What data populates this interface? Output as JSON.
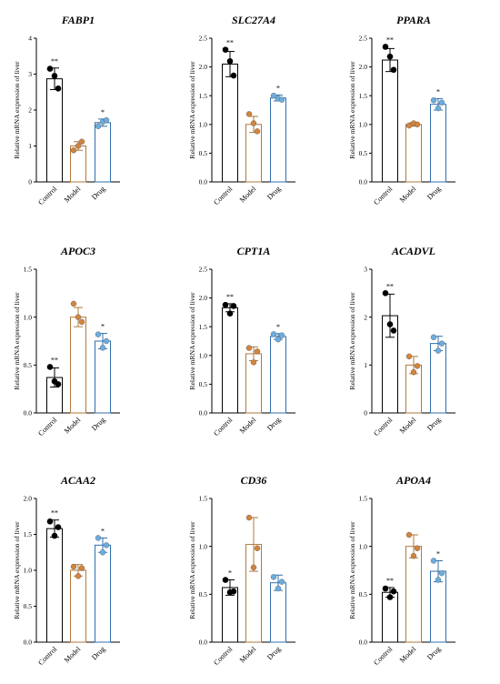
{
  "colors": {
    "Control": "#000000",
    "Model": "#b07a3a",
    "Drug": "#2f6fae",
    "Model_points": "#d2843e",
    "Drug_points": "#6aaee0"
  },
  "chart_data": [
    {
      "type": "bar",
      "title": "FABP1",
      "ylabel": "Relative mRNA expression of liver",
      "categories": [
        "Control",
        "Model",
        "Drug"
      ],
      "ylim": [
        0,
        4
      ],
      "yticks": [
        "0",
        "1",
        "2",
        "3",
        "4"
      ],
      "values": [
        2.87,
        1.0,
        1.65
      ],
      "errors": [
        0.3,
        0.12,
        0.1
      ],
      "significance": [
        "**",
        "",
        "*"
      ],
      "points": [
        [
          3.15,
          2.95,
          2.6
        ],
        [
          0.88,
          1.0,
          1.12
        ],
        [
          1.55,
          1.67,
          1.72
        ]
      ]
    },
    {
      "type": "bar",
      "title": "SLC27A4",
      "ylabel": "Relative mRNA expression of liver",
      "categories": [
        "Control",
        "Model",
        "Drug"
      ],
      "ylim": [
        0,
        2.5
      ],
      "yticks": [
        "0.0",
        "0.5",
        "1.0",
        "1.5",
        "2.0",
        "2.5"
      ],
      "values": [
        2.05,
        1.0,
        1.46
      ],
      "errors": [
        0.22,
        0.14,
        0.05
      ],
      "significance": [
        "**",
        "",
        "*"
      ],
      "points": [
        [
          2.3,
          2.1,
          1.85
        ],
        [
          1.18,
          1.02,
          0.88
        ],
        [
          1.5,
          1.45,
          1.43
        ]
      ]
    },
    {
      "type": "bar",
      "title": "PPARA",
      "ylabel": "Relative mRNA expression of liver",
      "categories": [
        "Control",
        "Model",
        "Drug"
      ],
      "ylim": [
        0,
        2.5
      ],
      "yticks": [
        "0.0",
        "0.5",
        "1.0",
        "1.5",
        "2.0",
        "2.5"
      ],
      "values": [
        2.12,
        1.0,
        1.35
      ],
      "errors": [
        0.2,
        0.03,
        0.1
      ],
      "significance": [
        "**",
        "",
        "*"
      ],
      "points": [
        [
          2.35,
          2.18,
          1.95
        ],
        [
          0.98,
          1.02,
          1.0
        ],
        [
          1.42,
          1.28,
          1.38
        ]
      ]
    },
    {
      "type": "bar",
      "title": "APOC3",
      "ylabel": "Relative mRNA expression of liver",
      "categories": [
        "Control",
        "Model",
        "Drug"
      ],
      "ylim": [
        0,
        1.5
      ],
      "yticks": [
        "0.0",
        "0.5",
        "1.0",
        "1.5"
      ],
      "values": [
        0.37,
        1.0,
        0.75
      ],
      "errors": [
        0.1,
        0.1,
        0.08
      ],
      "significance": [
        "**",
        "",
        "*"
      ],
      "points": [
        [
          0.48,
          0.33,
          0.3
        ],
        [
          1.14,
          1.0,
          0.95
        ],
        [
          0.82,
          0.68,
          0.75
        ]
      ]
    },
    {
      "type": "bar",
      "title": "CPT1A",
      "ylabel": "Relative mRNA expression of liver",
      "categories": [
        "Control",
        "Model",
        "Drug"
      ],
      "ylim": [
        0,
        2.5
      ],
      "yticks": [
        "0.0",
        "0.5",
        "1.0",
        "1.5",
        "2.0",
        "2.5"
      ],
      "values": [
        1.83,
        1.03,
        1.33
      ],
      "errors": [
        0.07,
        0.12,
        0.05
      ],
      "significance": [
        "**",
        "",
        "*"
      ],
      "points": [
        [
          1.88,
          1.73,
          1.86
        ],
        [
          1.13,
          0.88,
          1.07
        ],
        [
          1.37,
          1.28,
          1.35
        ]
      ]
    },
    {
      "type": "bar",
      "title": "ACADVL",
      "ylabel": "Relative mRNA expression of liver",
      "categories": [
        "Control",
        "Model",
        "Drug"
      ],
      "ylim": [
        0,
        3
      ],
      "yticks": [
        "0",
        "1",
        "2",
        "3"
      ],
      "values": [
        2.03,
        1.0,
        1.45
      ],
      "errors": [
        0.45,
        0.18,
        0.15
      ],
      "significance": [
        "**",
        "",
        ""
      ],
      "points": [
        [
          2.5,
          1.85,
          1.72
        ],
        [
          1.18,
          0.85,
          0.98
        ],
        [
          1.58,
          1.3,
          1.45
        ]
      ]
    },
    {
      "type": "bar",
      "title": "ACAA2",
      "ylabel": "Relative mRNA expression of liver",
      "categories": [
        "Control",
        "Model",
        "Drug"
      ],
      "ylim": [
        0,
        2.0
      ],
      "yticks": [
        "0.0",
        "0.5",
        "1.0",
        "1.5",
        "2.0"
      ],
      "values": [
        1.58,
        1.0,
        1.35
      ],
      "errors": [
        0.12,
        0.08,
        0.1
      ],
      "significance": [
        "**",
        "",
        "*"
      ],
      "points": [
        [
          1.68,
          1.48,
          1.6
        ],
        [
          1.05,
          0.92,
          1.03
        ],
        [
          1.45,
          1.25,
          1.35
        ]
      ]
    },
    {
      "type": "bar",
      "title": "CD36",
      "ylabel": "Relative mRNA expression of liver",
      "categories": [
        "Control",
        "Model",
        "Drug"
      ],
      "ylim": [
        0,
        1.5
      ],
      "yticks": [
        "0.0",
        "0.5",
        "1.0",
        "1.5"
      ],
      "values": [
        0.57,
        1.02,
        0.62
      ],
      "errors": [
        0.08,
        0.28,
        0.08
      ],
      "significance": [
        "*",
        "",
        ""
      ],
      "points": [
        [
          0.65,
          0.52,
          0.53
        ],
        [
          1.3,
          0.78,
          0.98
        ],
        [
          0.68,
          0.56,
          0.63
        ]
      ]
    },
    {
      "type": "bar",
      "title": "APOA4",
      "ylabel": "Relative mRNA expression of liver",
      "categories": [
        "Control",
        "Model",
        "Drug"
      ],
      "ylim": [
        0,
        1.5
      ],
      "yticks": [
        "0.0",
        "0.5",
        "1.0",
        "1.5"
      ],
      "values": [
        0.52,
        1.0,
        0.74
      ],
      "errors": [
        0.05,
        0.12,
        0.11
      ],
      "significance": [
        "**",
        "",
        "*"
      ],
      "points": [
        [
          0.56,
          0.47,
          0.53
        ],
        [
          1.12,
          0.9,
          0.98
        ],
        [
          0.85,
          0.65,
          0.72
        ]
      ]
    }
  ]
}
